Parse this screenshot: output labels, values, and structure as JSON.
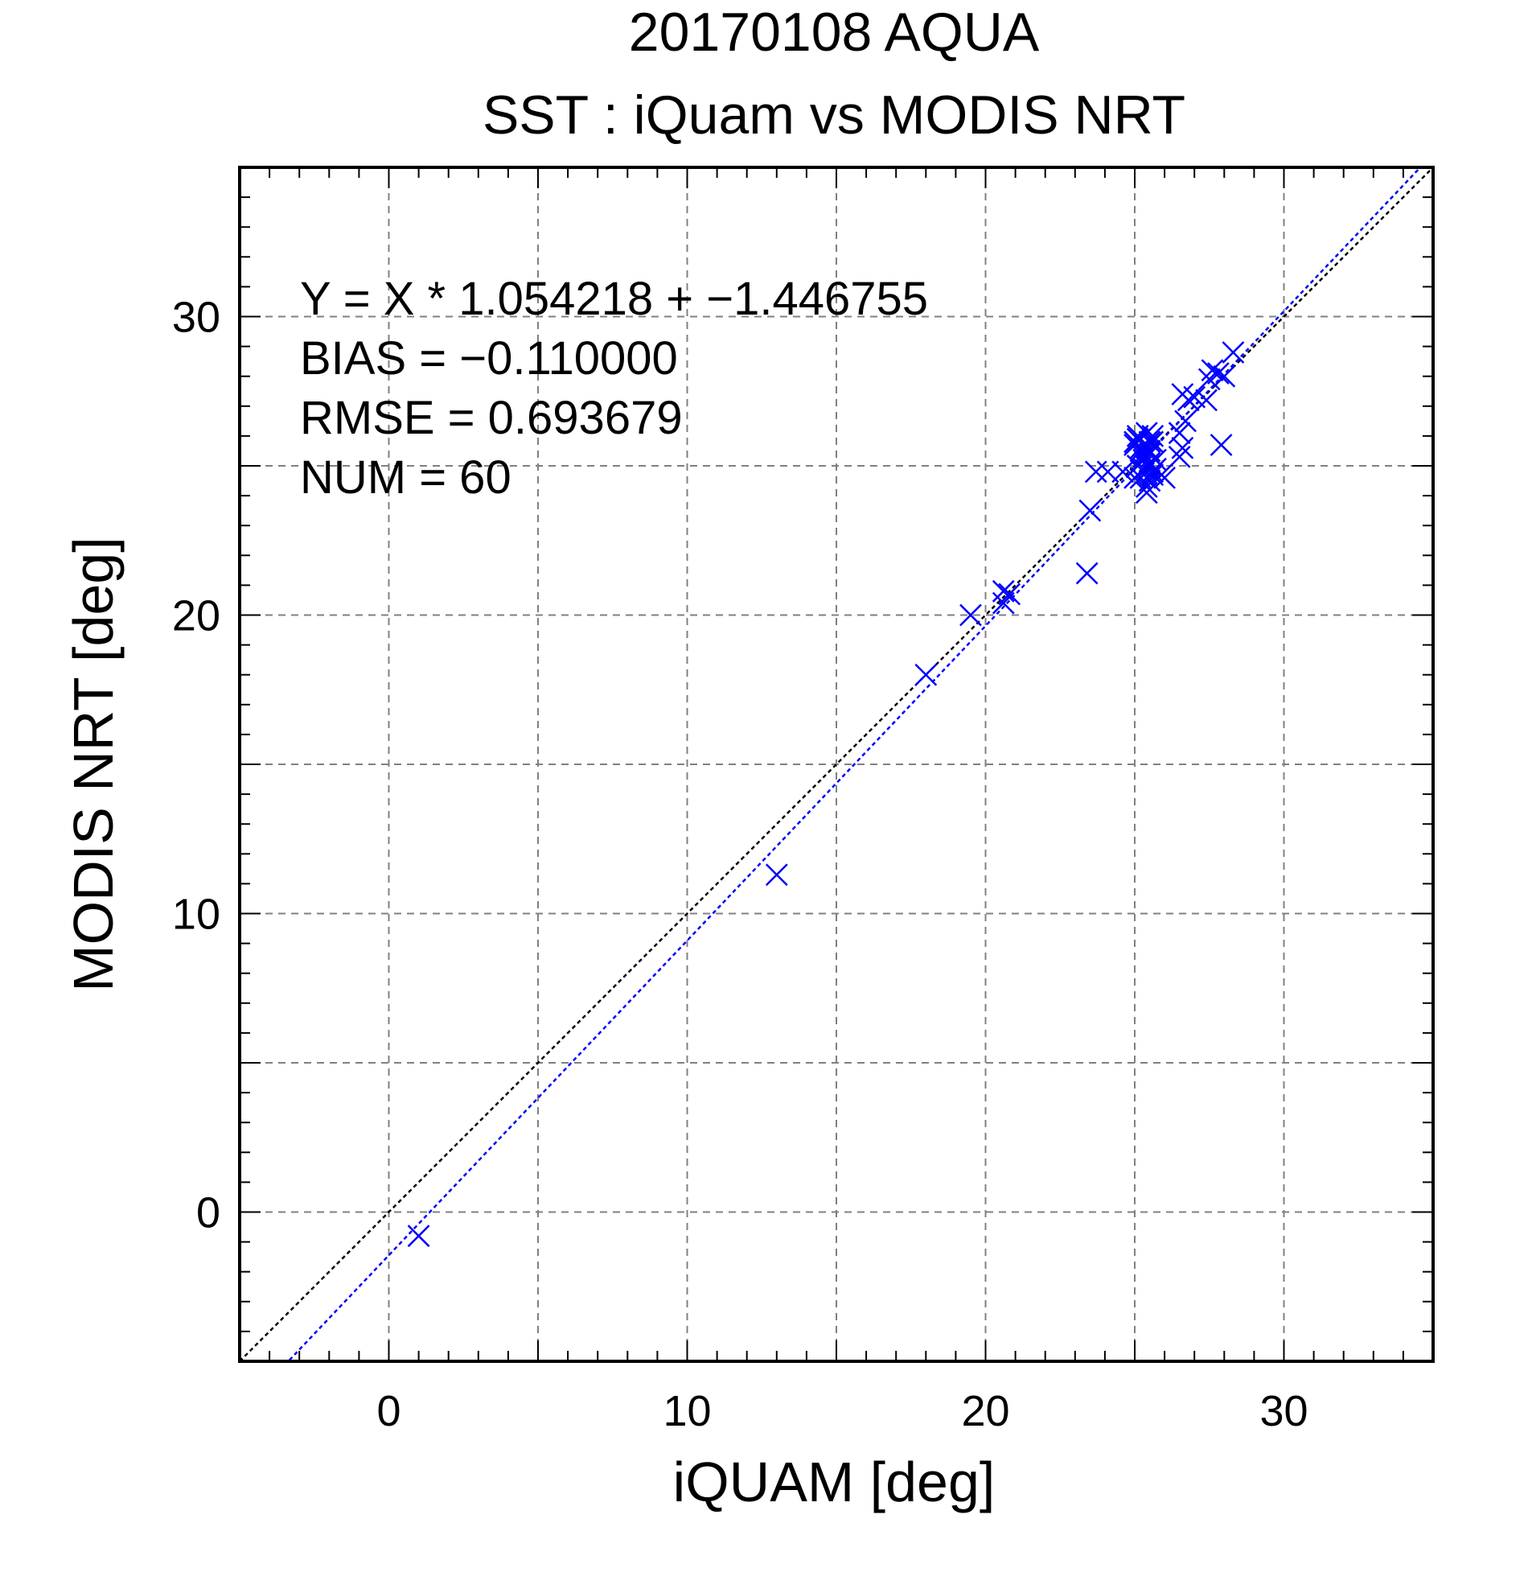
{
  "chart_data": {
    "type": "scatter",
    "title": "20170108 AQUA",
    "subtitle": "SST : iQuam vs MODIS NRT",
    "xlabel": "iQUAM [deg]",
    "ylabel": "MODIS NRT [deg]",
    "xlim": [
      -5,
      35
    ],
    "ylim": [
      -5,
      35
    ],
    "x_ticks": [
      "0",
      "10",
      "20",
      "30"
    ],
    "y_ticks": [
      "0",
      "10",
      "20",
      "30"
    ],
    "grid": true,
    "colors": {
      "points": "#0000ff",
      "fit_line": "#0000ff",
      "identity_line": "#000000"
    },
    "annotations": [
      "Y = X * 1.054218 + −1.446755",
      "BIAS = −0.110000",
      "RMSE = 0.693679",
      "NUM = 60"
    ],
    "fit": {
      "slope": 1.054218,
      "intercept": -1.446755
    },
    "points": {
      "x": [
        1.0,
        13.0,
        18.0,
        19.5,
        20.6,
        20.8,
        20.6,
        23.4,
        23.5,
        23.7,
        24.1,
        24.6,
        25.0,
        25.1,
        25.0,
        25.2,
        25.1,
        25.3,
        25.4,
        25.5,
        25.3,
        25.4,
        25.6,
        25.2,
        25.5,
        25.4,
        25.6,
        25.3,
        25.5,
        25.2,
        25.4,
        25.6,
        25.3,
        25.5,
        25.7,
        25.9,
        26.0,
        25.5,
        25.4,
        26.5,
        26.6,
        26.5,
        26.7,
        26.8,
        26.6,
        27.0,
        27.4,
        27.5,
        27.6,
        27.8,
        28.0,
        28.3,
        27.9,
        25.1,
        25.6,
        25.0,
        25.2,
        25.3,
        25.7,
        25.5
      ],
      "y": [
        -0.8,
        11.3,
        18.0,
        20.0,
        20.8,
        20.7,
        20.4,
        21.4,
        23.5,
        24.8,
        24.8,
        24.8,
        24.6,
        25.0,
        25.8,
        25.9,
        26.0,
        25.7,
        25.6,
        25.5,
        25.2,
        25.0,
        24.8,
        24.6,
        24.5,
        24.1,
        24.7,
        25.3,
        25.8,
        25.6,
        26.1,
        26.0,
        25.4,
        25.1,
        24.9,
        24.7,
        24.6,
        25.0,
        24.3,
        25.3,
        25.6,
        26.1,
        26.5,
        27.2,
        27.4,
        27.3,
        27.2,
        27.9,
        28.2,
        28.1,
        28.0,
        28.8,
        25.7,
        25.9,
        25.8,
        25.7,
        25.5,
        24.9,
        25.2,
        25.4
      ]
    }
  }
}
